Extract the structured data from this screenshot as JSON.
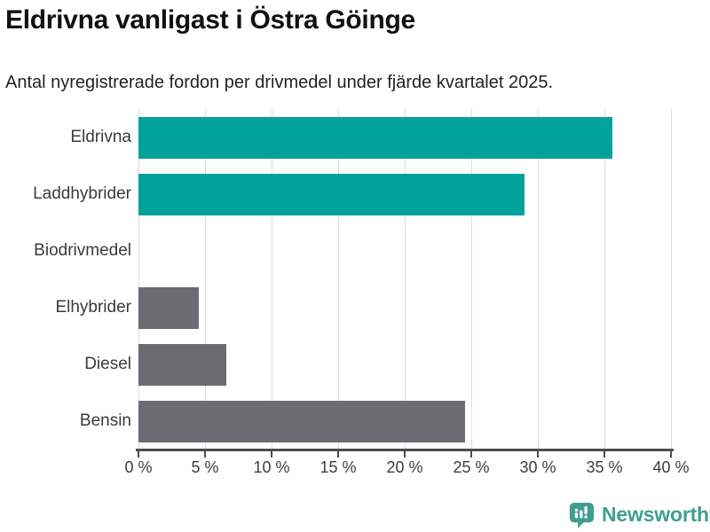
{
  "header": {
    "title": "Eldrivna vanligast i Östra Göinge",
    "subtitle": "Antal nyregistrerade fordon per drivmedel under fjärde kvartalet 2025."
  },
  "chart_data": {
    "type": "bar",
    "orientation": "horizontal",
    "title": "Eldrivna vanligast i Östra Göinge",
    "subtitle": "Antal nyregistrerade fordon per drivmedel under fjärde kvartalet 2025.",
    "categories": [
      "Eldrivna",
      "Laddhybrider",
      "Biodrivmedel",
      "Elhybrider",
      "Diesel",
      "Bensin"
    ],
    "values": [
      35.6,
      29,
      0,
      4.5,
      6.6,
      24.5
    ],
    "unit": "%",
    "xlabel": "",
    "ylabel": "",
    "xlim": [
      0,
      40
    ],
    "x_ticks": [
      0,
      5,
      10,
      15,
      20,
      25,
      30,
      35,
      40
    ],
    "x_tick_suffix": " %",
    "grid": true,
    "legend": "none",
    "bar_colors": [
      "#00a29a",
      "#00a29a",
      "#6c6b73",
      "#6c6b73",
      "#6c6b73",
      "#6c6b73"
    ]
  },
  "colors": {
    "teal_bar": "#00a29a",
    "gray_bar": "#6c6b73",
    "gridline": "#dddddd",
    "axis": "#4d4d4d",
    "label_text": "#3a3a3a",
    "brand_teal": "#3f9e90"
  },
  "footer": {
    "brand": "Newsworthy",
    "logo_icon": "speech-bubble-bar-chart-icon"
  }
}
